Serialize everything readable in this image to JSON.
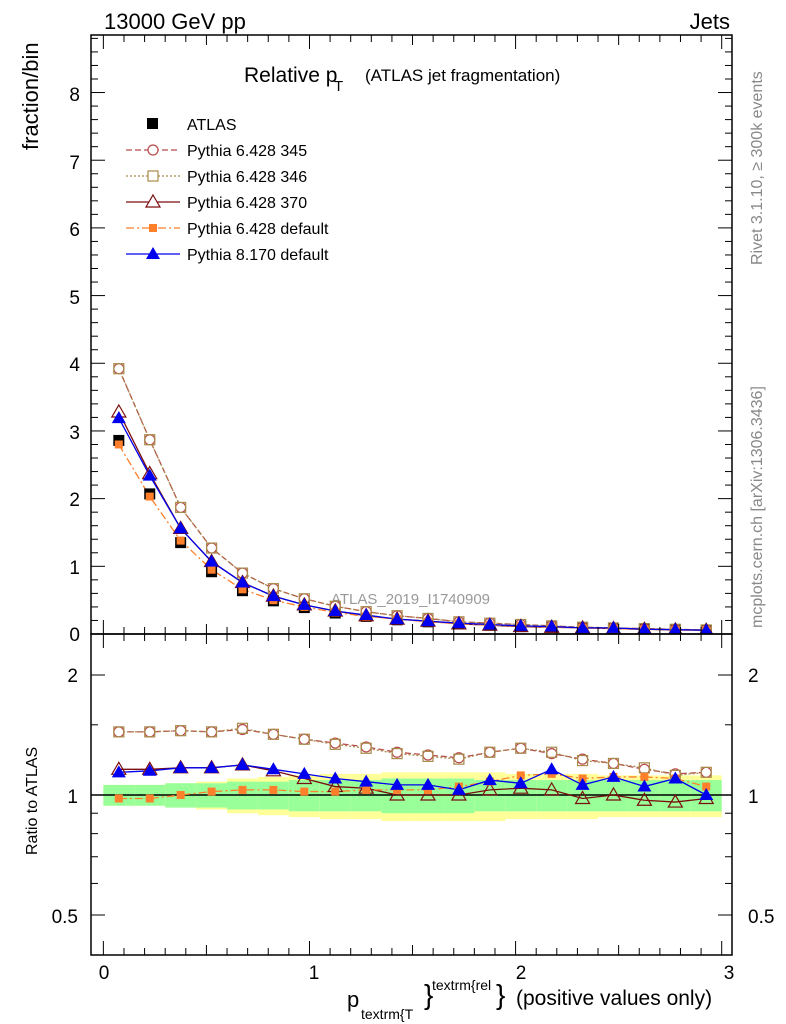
{
  "header": {
    "energy_label": "13000 GeV pp",
    "process_label": "Jets",
    "rivet_label": "Rivet 3.1.10, ≥ 300k events",
    "mcplots_label": "mcplots.cern.ch [arXiv:1306.3436]",
    "analysis_label": "ATLAS_2019_I1740909"
  },
  "main_plot": {
    "title_main": "Relative p",
    "title_sub": "T",
    "title_rest": "(ATLAS jet fragmentation)",
    "ylabel": "fraction/bin",
    "ylim": [
      0,
      8.85
    ],
    "yticks": [
      "0",
      "1",
      "2",
      "3",
      "4",
      "5",
      "6",
      "7",
      "8"
    ]
  },
  "ratio_plot": {
    "ylabel": "Ratio to ATLAS",
    "yticks": [
      "0.5",
      "1",
      "2"
    ]
  },
  "xaxis": {
    "xlim": [
      -0.06,
      3.05
    ],
    "xticks": [
      "0",
      "1",
      "2",
      "3"
    ],
    "label_p": "p",
    "label_sub": "textrm{T",
    "label_sup": "textrm{rel",
    "label_close": "}",
    "label_rest": "(positive values only)"
  },
  "colors": {
    "data": "#000000",
    "p345": "#b84b4b",
    "p346": "#a88a4a",
    "p370": "#7a0e0e",
    "p6def": "#ff7f2a",
    "p8def": "#0000ee",
    "band_yellow": "#ffff99",
    "band_green": "#99ff99"
  },
  "chart_data": {
    "type": "line",
    "x": [
      0.075,
      0.225,
      0.375,
      0.525,
      0.675,
      0.825,
      0.975,
      1.125,
      1.275,
      1.425,
      1.575,
      1.725,
      1.875,
      2.025,
      2.175,
      2.325,
      2.475,
      2.625,
      2.775,
      2.925
    ],
    "data": {
      "name": "ATLAS",
      "values": [
        2.86,
        2.07,
        1.35,
        0.92,
        0.64,
        0.49,
        0.39,
        0.31,
        0.26,
        0.21,
        0.18,
        0.15,
        0.13,
        0.11,
        0.1,
        0.09,
        0.08,
        0.07,
        0.06,
        0.055
      ]
    },
    "series": [
      {
        "name": "Pythia 6.428 345",
        "key": "p345",
        "style": "circle-open",
        "dash": "6,3",
        "values": [
          3.92,
          2.87,
          1.87,
          1.27,
          0.9,
          0.67,
          0.52,
          0.41,
          0.33,
          0.27,
          0.23,
          0.18,
          0.16,
          0.14,
          0.12,
          0.1,
          0.09,
          0.08,
          0.07,
          0.06
        ],
        "ratio": [
          1.44,
          1.44,
          1.45,
          1.44,
          1.46,
          1.42,
          1.38,
          1.35,
          1.32,
          1.28,
          1.26,
          1.24,
          1.28,
          1.31,
          1.27,
          1.23,
          1.2,
          1.16,
          1.13,
          1.14
        ]
      },
      {
        "name": "Pythia 6.428 346",
        "key": "p346",
        "style": "square-open",
        "dash": "2,2",
        "values": [
          3.92,
          2.87,
          1.87,
          1.27,
          0.9,
          0.67,
          0.52,
          0.41,
          0.33,
          0.27,
          0.23,
          0.18,
          0.16,
          0.14,
          0.12,
          0.1,
          0.09,
          0.08,
          0.07,
          0.06
        ],
        "ratio": [
          1.44,
          1.44,
          1.45,
          1.44,
          1.47,
          1.42,
          1.38,
          1.34,
          1.31,
          1.27,
          1.25,
          1.23,
          1.28,
          1.31,
          1.28,
          1.22,
          1.2,
          1.17,
          1.12,
          1.14
        ]
      },
      {
        "name": "Pythia 6.428 370",
        "key": "p370",
        "style": "triangle-open",
        "dash": "",
        "values": [
          3.28,
          2.37,
          1.56,
          1.07,
          0.76,
          0.56,
          0.43,
          0.34,
          0.27,
          0.22,
          0.19,
          0.15,
          0.13,
          0.11,
          0.1,
          0.09,
          0.08,
          0.07,
          0.06,
          0.055
        ],
        "ratio": [
          1.16,
          1.16,
          1.17,
          1.17,
          1.19,
          1.15,
          1.1,
          1.05,
          1.04,
          1.0,
          1.0,
          1.0,
          1.03,
          1.04,
          1.03,
          0.98,
          1.0,
          0.97,
          0.96,
          0.98
        ]
      },
      {
        "name": "Pythia 6.428 default",
        "key": "p6def",
        "style": "square-filled",
        "dash": "8,3,2,3",
        "values": [
          2.8,
          2.03,
          1.38,
          0.95,
          0.66,
          0.5,
          0.4,
          0.32,
          0.26,
          0.22,
          0.18,
          0.15,
          0.13,
          0.12,
          0.1,
          0.09,
          0.08,
          0.07,
          0.06,
          0.055
        ],
        "ratio": [
          0.98,
          0.98,
          1.0,
          1.02,
          1.03,
          1.03,
          1.02,
          1.02,
          1.03,
          1.03,
          1.03,
          1.05,
          1.08,
          1.12,
          1.13,
          1.1,
          1.11,
          1.11,
          1.1,
          1.05
        ]
      },
      {
        "name": "Pythia 8.170 default",
        "key": "p8def",
        "style": "triangle-filled",
        "dash": "",
        "values": [
          3.19,
          2.34,
          1.56,
          1.07,
          0.76,
          0.56,
          0.43,
          0.34,
          0.28,
          0.22,
          0.19,
          0.16,
          0.14,
          0.12,
          0.11,
          0.09,
          0.09,
          0.07,
          0.065,
          0.055
        ],
        "ratio": [
          1.14,
          1.15,
          1.17,
          1.17,
          1.19,
          1.16,
          1.13,
          1.1,
          1.08,
          1.06,
          1.06,
          1.03,
          1.09,
          1.07,
          1.16,
          1.06,
          1.11,
          1.05,
          1.1,
          1.0
        ]
      }
    ],
    "band_inner": [
      0.06,
      0.06,
      0.07,
      0.07,
      0.08,
      0.08,
      0.09,
      0.09,
      0.09,
      0.1,
      0.1,
      0.1,
      0.09,
      0.09,
      0.09,
      0.09,
      0.09,
      0.09,
      0.09,
      0.09
    ],
    "band_outer": [
      0.06,
      0.06,
      0.07,
      0.08,
      0.1,
      0.11,
      0.12,
      0.13,
      0.13,
      0.14,
      0.14,
      0.14,
      0.14,
      0.13,
      0.13,
      0.13,
      0.12,
      0.12,
      0.12,
      0.12
    ]
  }
}
